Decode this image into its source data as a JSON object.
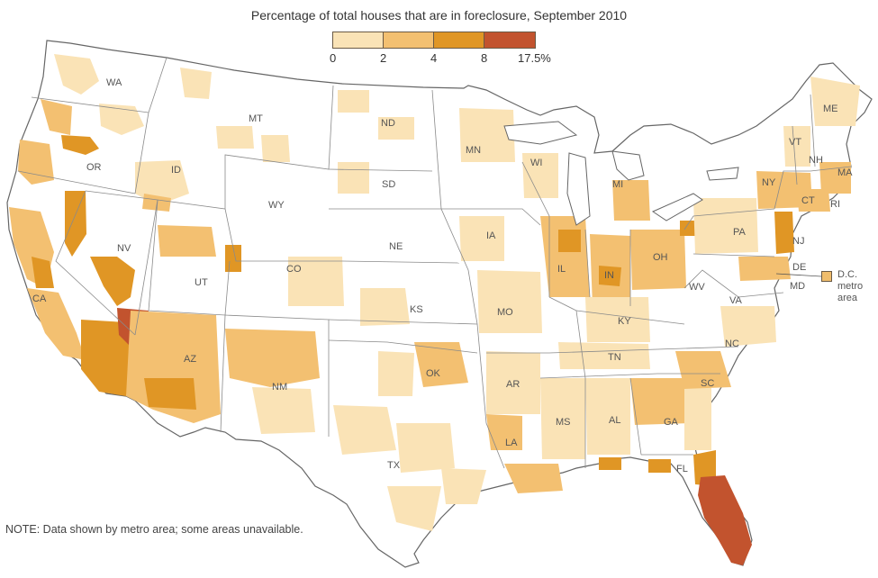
{
  "title": "Percentage of total houses that are in foreclosure, September 2010",
  "legend": {
    "bins": [
      {
        "min": 0,
        "max": 2,
        "color": "#fae3b6"
      },
      {
        "min": 2,
        "max": 4,
        "color": "#f3c071"
      },
      {
        "min": 4,
        "max": 8,
        "color": "#e09625"
      },
      {
        "min": 8,
        "max": 17.5,
        "color": "#c2532e"
      }
    ],
    "tick_labels": [
      "0",
      "2",
      "4",
      "8",
      "17.5%"
    ]
  },
  "dc_callout": {
    "lines": [
      "D.C.",
      "metro",
      "area"
    ],
    "color": "#f0bd6c"
  },
  "note": "NOTE: Data shown by metro area; some areas unavailable.",
  "states": {
    "WA": "WA",
    "OR": "OR",
    "CA": "CA",
    "NV": "NV",
    "ID": "ID",
    "MT": "MT",
    "WY": "WY",
    "UT": "UT",
    "AZ": "AZ",
    "CO": "CO",
    "NM": "NM",
    "ND": "ND",
    "SD": "SD",
    "NE": "NE",
    "KS": "KS",
    "OK": "OK",
    "TX": "TX",
    "MN": "MN",
    "IA": "IA",
    "MO": "MO",
    "AR": "AR",
    "LA": "LA",
    "WI": "WI",
    "IL": "IL",
    "MI": "MI",
    "IN": "IN",
    "OH": "OH",
    "KY": "KY",
    "TN": "TN",
    "MS": "MS",
    "AL": "AL",
    "GA": "GA",
    "FL": "FL",
    "SC": "SC",
    "NC": "NC",
    "VA": "VA",
    "WV": "WV",
    "PA": "PA",
    "NY": "NY",
    "VT": "VT",
    "NH": "NH",
    "ME": "ME",
    "MA": "MA",
    "CT": "CT",
    "RI": "RI",
    "NJ": "NJ",
    "DE": "DE",
    "MD": "MD"
  },
  "colors": {
    "land": "#ffffff",
    "border": "#8a8a8a",
    "low": "#fae3b6",
    "mid": "#f3c071",
    "high": "#e09625",
    "very_high": "#c2532e",
    "water": "#ffffff"
  }
}
